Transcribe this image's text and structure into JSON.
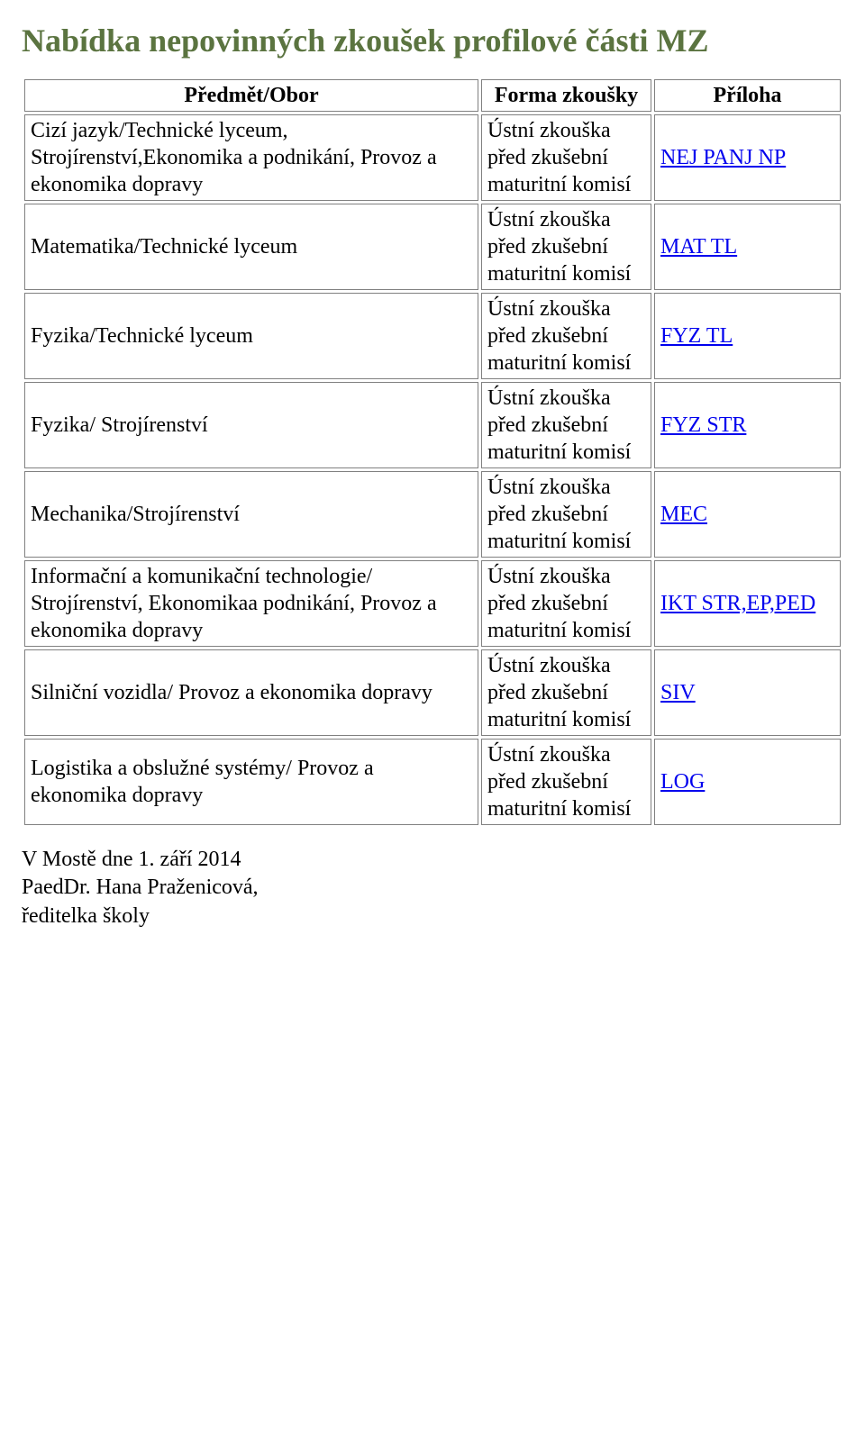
{
  "title": {
    "text": "Nabídka nepovinných zkoušek profilové části MZ",
    "color": "#5b7440"
  },
  "table": {
    "headers": {
      "subject": "Předmět/Obor",
      "form": "Forma zkoušky",
      "attachment": "Příloha"
    },
    "form_text": "Ústní zkouška před zkušební maturitní komisí",
    "link_color": "#0000ee",
    "rows": [
      {
        "subject": "Cizí jazyk/Technické lyceum, Strojírenství,Ekonomika a podnikání, Provoz a ekonomika dopravy",
        "attachment": "NEJ PANJ NP"
      },
      {
        "subject": "Matematika/Technické lyceum",
        "attachment": "MAT TL"
      },
      {
        "subject": "Fyzika/Technické lyceum",
        "attachment": "FYZ TL"
      },
      {
        "subject": "Fyzika/ Strojírenství",
        "attachment": "FYZ STR"
      },
      {
        "subject": "Mechanika/Strojírenství",
        "attachment": "MEC"
      },
      {
        "subject": "Informační a komunikační technologie/ Strojírenství, Ekonomikaa podnikání, Provoz a ekonomika dopravy",
        "attachment": "IKT STR,EP,PED"
      },
      {
        "subject": "Silniční vozidla/ Provoz a ekonomika dopravy",
        "attachment": "SIV"
      },
      {
        "subject": "Logistika a obslužné systémy/ Provoz a ekonomika dopravy",
        "attachment": "LOG"
      }
    ]
  },
  "footer": {
    "line1": "V Mostě dne 1. září 2014",
    "line2": "PaedDr. Hana Praženicová,",
    "line3": "ředitelka školy"
  }
}
